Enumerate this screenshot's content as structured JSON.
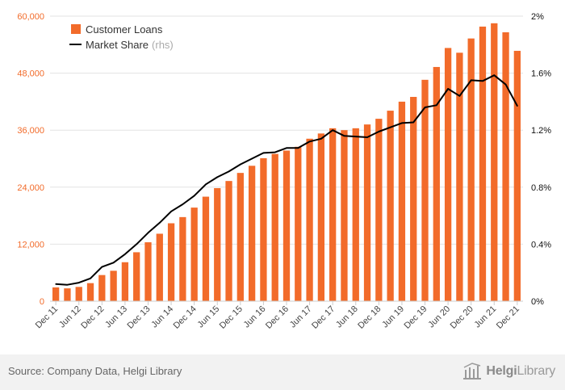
{
  "chart_data": {
    "type": "bar",
    "title": "",
    "xlabel": "",
    "ylabel": "",
    "y_left": {
      "ylim": [
        0,
        60000
      ],
      "ticks": [
        "0",
        "12,000",
        "24,000",
        "36,000",
        "48,000",
        "60,000"
      ]
    },
    "y_right": {
      "ylim": [
        0,
        2
      ],
      "ticks": [
        "0%",
        "0.4%",
        "0.8%",
        "1.2%",
        "1.6%",
        "2%"
      ]
    },
    "grid": "horizontal",
    "legend_position": "top-left",
    "x_tick_labels": [
      "Dec 11",
      "Jun 12",
      "Dec 12",
      "Jun 13",
      "Dec 13",
      "Jun 14",
      "Dec 14",
      "Jun 15",
      "Dec 15",
      "Jun 16",
      "Dec 16",
      "Jun 17",
      "Dec 17",
      "Jun 18",
      "Dec 18",
      "Jun 19",
      "Dec 19",
      "Jun 20",
      "Dec 20",
      "Jun 21",
      "Dec 21"
    ],
    "categories": [
      "Dec 11",
      "Mar 12",
      "Jun 12",
      "Sep 12",
      "Dec 12",
      "Mar 13",
      "Jun 13",
      "Sep 13",
      "Dec 13",
      "Mar 14",
      "Jun 14",
      "Sep 14",
      "Dec 14",
      "Mar 15",
      "Jun 15",
      "Sep 15",
      "Dec 15",
      "Mar 16",
      "Jun 16",
      "Sep 16",
      "Dec 16",
      "Mar 17",
      "Jun 17",
      "Sep 17",
      "Dec 17",
      "Mar 18",
      "Jun 18",
      "Sep 18",
      "Dec 18",
      "Mar 19",
      "Jun 19",
      "Sep 19",
      "Dec 19",
      "Mar 20",
      "Jun 20",
      "Sep 20",
      "Dec 20",
      "Mar 21",
      "Jun 21",
      "Sep 21",
      "Dec 21"
    ],
    "series": [
      {
        "name": "Customer Loans",
        "type": "bar",
        "axis": "left",
        "color": "#f26b2a",
        "values": [
          2900,
          2700,
          3000,
          3800,
          5500,
          6400,
          8200,
          10300,
          12400,
          14200,
          16400,
          17700,
          19700,
          22000,
          23800,
          25300,
          27000,
          28500,
          30100,
          31000,
          31700,
          32500,
          34200,
          35300,
          36400,
          36000,
          36400,
          37200,
          38400,
          40100,
          42000,
          43000,
          46600,
          49300,
          53300,
          52300,
          55300,
          57800,
          58500,
          56600,
          52700
        ]
      },
      {
        "name": "Market Share",
        "type": "line",
        "axis": "right",
        "color": "#000000",
        "values": [
          0.12,
          0.115,
          0.13,
          0.16,
          0.24,
          0.27,
          0.33,
          0.4,
          0.48,
          0.55,
          0.63,
          0.68,
          0.74,
          0.82,
          0.87,
          0.91,
          0.96,
          1.0,
          1.04,
          1.045,
          1.075,
          1.075,
          1.12,
          1.14,
          1.2,
          1.16,
          1.155,
          1.15,
          1.19,
          1.22,
          1.25,
          1.255,
          1.36,
          1.375,
          1.49,
          1.44,
          1.55,
          1.545,
          1.585,
          1.52,
          1.37
        ]
      }
    ]
  },
  "legend": {
    "loans_label": "Customer Loans",
    "share_label": "Market Share",
    "share_suffix": "(rhs)"
  },
  "footer": {
    "source": "Source: Company Data, Helgi Library",
    "logo_bold": "Helgi",
    "logo_light": "Library"
  },
  "colors": {
    "bar": "#f26b2a",
    "line": "#000000",
    "axis_label": "#f26b2a",
    "footer_bg": "#f2f2f2"
  }
}
